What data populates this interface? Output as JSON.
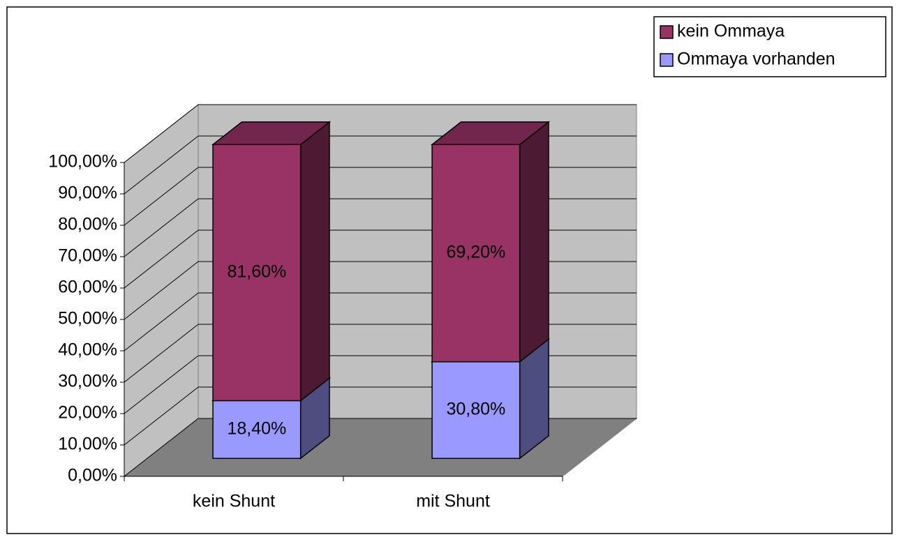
{
  "chart_data": {
    "type": "bar3d_stacked",
    "categories": [
      "kein Shunt",
      "mit Shunt"
    ],
    "series": [
      {
        "name": "Ommaya vorhanden",
        "color": "#9999ff",
        "values": [
          18.4,
          30.8
        ],
        "value_labels": [
          "18,40%",
          "30,80%"
        ]
      },
      {
        "name": "kein Ommaya",
        "color": "#993366",
        "values": [
          81.6,
          69.2
        ],
        "value_labels": [
          "81,60%",
          "69,20%"
        ]
      }
    ],
    "ylim": [
      0,
      100
    ],
    "yticks": [
      {
        "value": 0,
        "label": "0,00%"
      },
      {
        "value": 10,
        "label": "10,00%"
      },
      {
        "value": 20,
        "label": "20,00%"
      },
      {
        "value": 30,
        "label": "30,00%"
      },
      {
        "value": 40,
        "label": "40,00%"
      },
      {
        "value": 50,
        "label": "50,00%"
      },
      {
        "value": 60,
        "label": "60,00%"
      },
      {
        "value": 70,
        "label": "70,00%"
      },
      {
        "value": 80,
        "label": "80,00%"
      },
      {
        "value": 90,
        "label": "90,00%"
      },
      {
        "value": 100,
        "label": "100,00%"
      }
    ],
    "grid": true,
    "legend": "top-right"
  }
}
